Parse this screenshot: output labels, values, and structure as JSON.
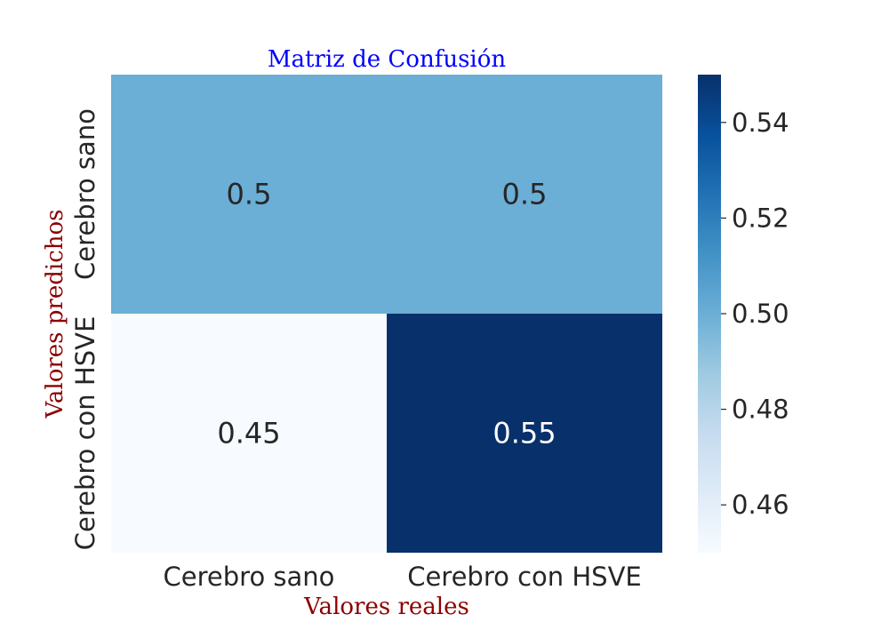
{
  "chart_data": {
    "type": "heatmap",
    "title": "Matriz de Confusión",
    "xlabel": "Valores reales",
    "ylabel": "Valores predichos",
    "x_categories": [
      "Cerebro sano",
      "Cerebro con HSVE"
    ],
    "y_categories": [
      "Cerebro sano",
      "Cerebro con HSVE"
    ],
    "values": [
      [
        0.5,
        0.5
      ],
      [
        0.45,
        0.55
      ]
    ],
    "cell_labels": [
      [
        "0.5",
        "0.5"
      ],
      [
        "0.45",
        "0.55"
      ]
    ],
    "colormap": "Blues",
    "colorbar": {
      "range": [
        0.45,
        0.55
      ],
      "ticks": [
        0.46,
        0.48,
        0.5,
        0.52,
        0.54
      ],
      "tick_labels": [
        "0.46",
        "0.48",
        "0.50",
        "0.52",
        "0.54"
      ]
    }
  },
  "colors": {
    "title": "#0000ff",
    "axis_labels": "#8b0000",
    "tick_text": "#262626"
  }
}
